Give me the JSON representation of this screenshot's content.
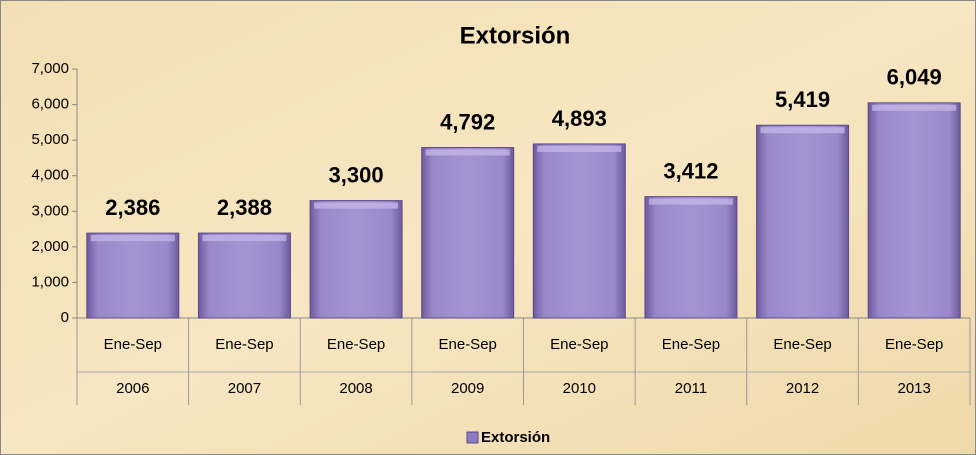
{
  "chart_data": {
    "type": "bar",
    "title": "Extorsión",
    "categories": [
      "Ene-Sep",
      "Ene-Sep",
      "Ene-Sep",
      "Ene-Sep",
      "Ene-Sep",
      "Ene-Sep",
      "Ene-Sep",
      "Ene-Sep"
    ],
    "category_groups": [
      "2006",
      "2007",
      "2008",
      "2009",
      "2010",
      "2011",
      "2012",
      "2013"
    ],
    "series": [
      {
        "name": "Extorsión",
        "color": "#8e7cc3",
        "values": [
          2386,
          2388,
          3300,
          4792,
          4893,
          3412,
          5419,
          6049
        ],
        "value_labels": [
          "2,386",
          "2,388",
          "3,300",
          "4,792",
          "4,893",
          "3,412",
          "5,419",
          "6,049"
        ]
      }
    ],
    "ylim": [
      0,
      7000
    ],
    "yticks": [
      0,
      {
        "value": 1000,
        "label": "1,000"
      },
      {
        "value": 2000,
        "label": "2,000"
      },
      {
        "value": 3000,
        "label": "3,000"
      },
      {
        "value": 4000,
        "label": "4,000"
      },
      {
        "value": 5000,
        "label": "5,000"
      },
      {
        "value": 6000,
        "label": "6,000"
      },
      {
        "value": 7000,
        "label": "7,000"
      }
    ],
    "legend": "bottom"
  }
}
